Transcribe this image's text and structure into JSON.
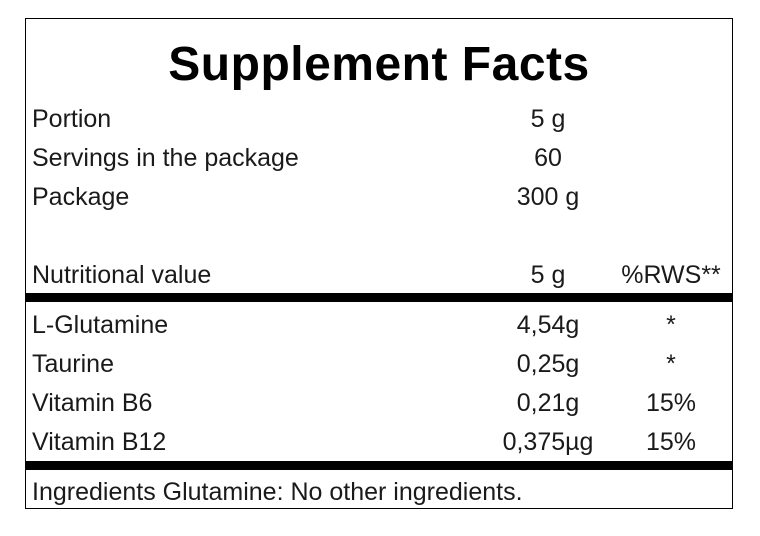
{
  "title": "Supplement Facts",
  "info_rows": [
    {
      "label": "Portion",
      "value": "5 g"
    },
    {
      "label": "Servings in the package",
      "value": "60"
    },
    {
      "label": "Package",
      "value": "300 g"
    }
  ],
  "nutrition_header": {
    "label": "Nutritional value",
    "amount": "5 g",
    "rws": "%RWS**"
  },
  "nutrients": [
    {
      "name": "L-Glutamine",
      "amount": "4,54g",
      "rws": "*"
    },
    {
      "name": "Taurine",
      "amount": "0,25g",
      "rws": "*"
    },
    {
      "name": "Vitamin B6",
      "amount": "0,21g",
      "rws": "15%"
    },
    {
      "name": "Vitamin B12",
      "amount": "0,375µg",
      "rws": "15%"
    }
  ],
  "ingredients": "Ingredients Glutamine: No other ingredients."
}
